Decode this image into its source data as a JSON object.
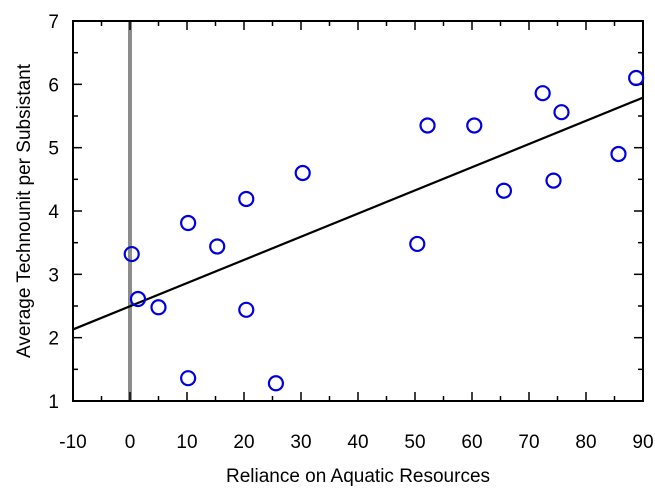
{
  "chart_data": {
    "type": "scatter",
    "xlabel": "Reliance on Aquatic Resources",
    "ylabel": "Average Technounit per Subsistant",
    "xlim": [
      -10,
      90
    ],
    "ylim": [
      1,
      7
    ],
    "x_ticks": [
      -10,
      0,
      10,
      20,
      30,
      40,
      50,
      60,
      70,
      80,
      90
    ],
    "y_ticks": [
      1,
      2,
      3,
      4,
      5,
      6,
      7
    ],
    "grid": false,
    "vertical_reference_line": {
      "x": 0
    },
    "trend_line": {
      "x": [
        -10,
        90
      ],
      "y": [
        2.13,
        5.79
      ]
    },
    "series": [
      {
        "points": [
          {
            "x": 0.3,
            "y": 3.32
          },
          {
            "x": 1.4,
            "y": 2.61
          },
          {
            "x": 5.0,
            "y": 2.48
          },
          {
            "x": 10.2,
            "y": 3.81
          },
          {
            "x": 10.2,
            "y": 1.36
          },
          {
            "x": 15.3,
            "y": 3.44
          },
          {
            "x": 20.4,
            "y": 4.19
          },
          {
            "x": 20.4,
            "y": 2.44
          },
          {
            "x": 25.6,
            "y": 1.28
          },
          {
            "x": 30.3,
            "y": 4.6
          },
          {
            "x": 50.4,
            "y": 3.48
          },
          {
            "x": 52.2,
            "y": 5.35
          },
          {
            "x": 60.4,
            "y": 5.35
          },
          {
            "x": 65.6,
            "y": 4.32
          },
          {
            "x": 72.4,
            "y": 5.86
          },
          {
            "x": 74.3,
            "y": 4.48
          },
          {
            "x": 75.7,
            "y": 5.56
          },
          {
            "x": 85.7,
            "y": 4.9
          },
          {
            "x": 88.8,
            "y": 6.1
          }
        ],
        "color": "#0000dd"
      }
    ]
  }
}
